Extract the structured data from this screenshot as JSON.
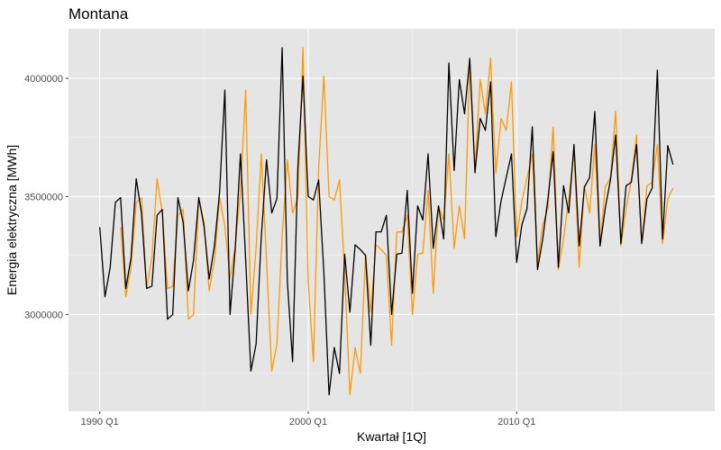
{
  "chart_data": {
    "type": "line",
    "title": "Montana",
    "xlabel": "Kwartał [1Q]",
    "ylabel": "Energia elektryczna [MWh]",
    "x_ticks": [
      {
        "label": "1990 Q1",
        "t": 0
      },
      {
        "label": "2000 Q1",
        "t": 40
      },
      {
        "label": "2010 Q1",
        "t": 80
      }
    ],
    "y_ticks": [
      {
        "label": "3000000",
        "v": 3000000
      },
      {
        "label": "3500000",
        "v": 3500000
      },
      {
        "label": "4000000",
        "v": 4000000
      }
    ],
    "xlim": [
      -6,
      118
    ],
    "ylim": [
      2590000,
      4210000
    ],
    "colors": {
      "panel": "#e5e5e5",
      "grid_major": "#ffffff",
      "grid_minor": "#f2f2f2",
      "series_actual": "#000000",
      "series_fitted": "#ff9900"
    },
    "series": [
      {
        "key": "actual",
        "start": 0,
        "values": [
          3370000,
          3075000,
          3200000,
          3475000,
          3495000,
          3110000,
          3240000,
          3575000,
          3430000,
          3110000,
          3120000,
          3420000,
          3445000,
          2980000,
          3000000,
          3495000,
          3390000,
          3100000,
          3230000,
          3495000,
          3375000,
          3150000,
          3290000,
          3520000,
          3950000,
          3000000,
          3280000,
          3680000,
          3230000,
          2760000,
          2875000,
          3330000,
          3655000,
          3430000,
          3490000,
          4130000,
          3140000,
          2800000,
          3620000,
          4010000,
          3500000,
          3485000,
          3570000,
          3180000,
          2660000,
          2860000,
          2750000,
          3255000,
          3010000,
          3295000,
          3275000,
          3250000,
          2870000,
          3350000,
          3350000,
          3420000,
          3000000,
          3255000,
          3260000,
          3525000,
          3090000,
          3460000,
          3400000,
          3680000,
          3280000,
          3460000,
          3320000,
          4065000,
          3610000,
          3995000,
          3850000,
          4085000,
          3600000,
          3830000,
          3780000,
          3985000,
          3330000,
          3480000,
          3580000,
          3680000,
          3220000,
          3380000,
          3450000,
          3795000,
          3190000,
          3320000,
          3490000,
          3690000,
          3200000,
          3545000,
          3430000,
          3720000,
          3290000,
          3540000,
          3580000,
          3860000,
          3290000,
          3450000,
          3570000,
          3760000,
          3300000,
          3545000,
          3560000,
          3720000,
          3300000,
          3490000,
          3535000,
          4035000,
          3320000,
          3715000,
          3635000
        ]
      },
      {
        "key": "fitted",
        "start": 4,
        "values": [
          3370000,
          3075000,
          3200000,
          3475000,
          3495000,
          3110000,
          3240000,
          3575000,
          3430000,
          3110000,
          3120000,
          3420000,
          3445000,
          2980000,
          3000000,
          3495000,
          3390000,
          3100000,
          3230000,
          3495000,
          3375000,
          3150000,
          3290000,
          3520000,
          3950000,
          3000000,
          3280000,
          3680000,
          3230000,
          2760000,
          2875000,
          3330000,
          3655000,
          3430000,
          3490000,
          4130000,
          3140000,
          2800000,
          3620000,
          4010000,
          3500000,
          3485000,
          3570000,
          3180000,
          2660000,
          2860000,
          2750000,
          3255000,
          3010000,
          3295000,
          3275000,
          3250000,
          2870000,
          3350000,
          3350000,
          3420000,
          3000000,
          3255000,
          3260000,
          3525000,
          3090000,
          3460000,
          3400000,
          3680000,
          3280000,
          3460000,
          3320000,
          4065000,
          3610000,
          3995000,
          3850000,
          4085000,
          3600000,
          3830000,
          3780000,
          3985000,
          3330000,
          3480000,
          3580000,
          3680000,
          3220000,
          3380000,
          3450000,
          3795000,
          3190000,
          3320000,
          3490000,
          3690000,
          3200000,
          3545000,
          3430000,
          3720000,
          3290000,
          3540000,
          3580000,
          3860000,
          3290000,
          3450000,
          3570000,
          3760000,
          3300000,
          3545000,
          3560000,
          3720000,
          3300000,
          3490000,
          3535000
        ]
      }
    ]
  }
}
